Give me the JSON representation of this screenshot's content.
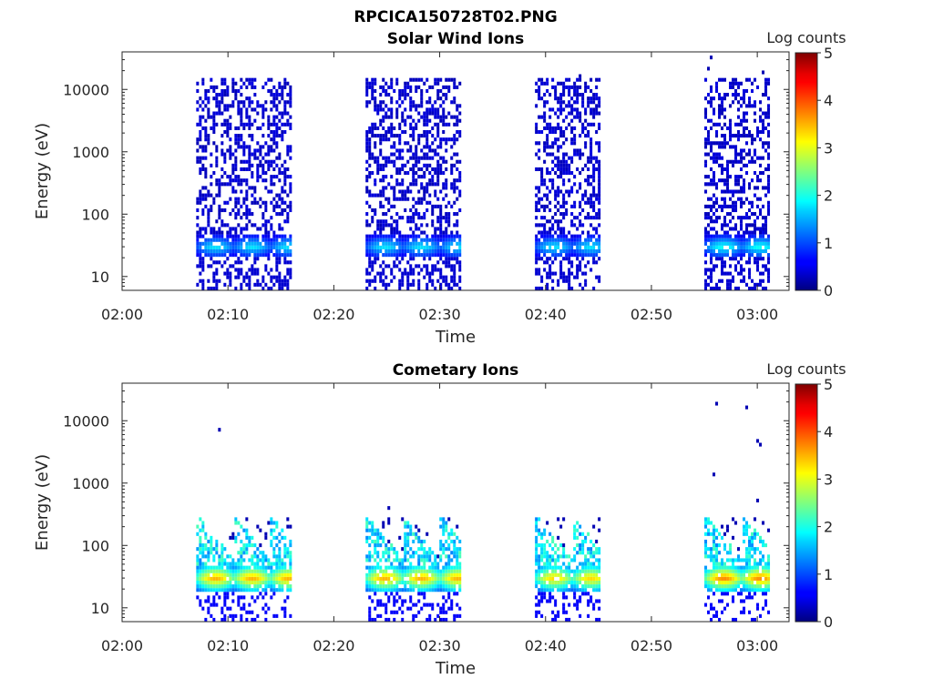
{
  "figure_title": "RPCICA150728T02.PNG",
  "colorbar": {
    "label": "Log counts",
    "ticks": [
      "0",
      "1",
      "2",
      "3",
      "4",
      "5"
    ],
    "range": [
      0,
      5
    ]
  },
  "chart_data": [
    {
      "type": "heatmap",
      "title": "Solar Wind Ions",
      "xlabel": "Time",
      "ylabel": "Energy (eV)",
      "y_scale": "log",
      "ylim": [
        6,
        40000
      ],
      "x_ticks": [
        "02:00",
        "02:10",
        "02:20",
        "02:30",
        "02:40",
        "02:50",
        "03:00"
      ],
      "y_ticks": [
        "10",
        "100",
        "1000",
        "10000"
      ],
      "colorbar_label": "Log counts",
      "color_range": [
        0,
        5
      ],
      "time_range": [
        "02:00",
        "03:03"
      ],
      "bursts": [
        {
          "start": "02:07",
          "end": "02:16",
          "upper_energy_eV": 15000,
          "peak_energy_eV": 30,
          "peak_log_counts": 1.8
        },
        {
          "start": "02:23",
          "end": "02:32",
          "upper_energy_eV": 15000,
          "peak_energy_eV": 30,
          "peak_log_counts": 1.8
        },
        {
          "start": "02:39",
          "end": "02:45",
          "upper_energy_eV": 15000,
          "peak_energy_eV": 30,
          "peak_log_counts": 1.8
        },
        {
          "start": "02:55",
          "end": "03:01",
          "upper_energy_eV": 15000,
          "peak_energy_eV": 30,
          "peak_log_counts": 2.0
        }
      ]
    },
    {
      "type": "heatmap",
      "title": "Cometary Ions",
      "xlabel": "Time",
      "ylabel": "Energy (eV)",
      "y_scale": "log",
      "ylim": [
        6,
        40000
      ],
      "x_ticks": [
        "02:00",
        "02:10",
        "02:20",
        "02:30",
        "02:40",
        "02:50",
        "03:00"
      ],
      "y_ticks": [
        "10",
        "100",
        "1000",
        "10000"
      ],
      "colorbar_label": "Log counts",
      "color_range": [
        0,
        5
      ],
      "time_range": [
        "02:00",
        "03:03"
      ],
      "bursts": [
        {
          "start": "02:07",
          "end": "02:16",
          "upper_energy_eV": 300,
          "peak_energy_eV": 30,
          "peak_log_counts": 3.6
        },
        {
          "start": "02:23",
          "end": "02:32",
          "upper_energy_eV": 300,
          "peak_energy_eV": 30,
          "peak_log_counts": 3.6
        },
        {
          "start": "02:39",
          "end": "02:45",
          "upper_energy_eV": 300,
          "peak_energy_eV": 30,
          "peak_log_counts": 3.4
        },
        {
          "start": "02:55",
          "end": "03:01",
          "upper_energy_eV": 300,
          "peak_energy_eV": 30,
          "peak_log_counts": 3.8
        }
      ]
    }
  ]
}
